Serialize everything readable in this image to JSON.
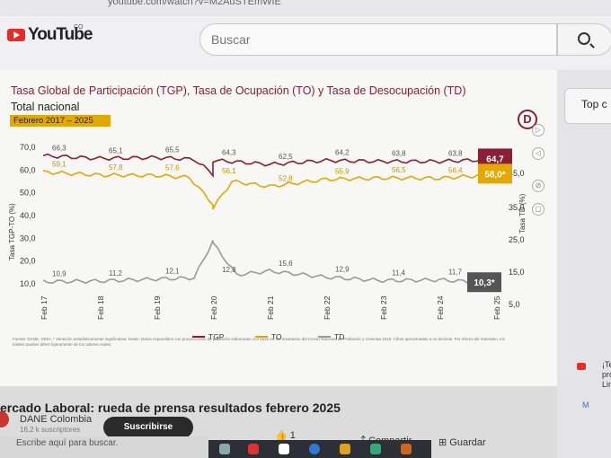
{
  "browser": {
    "url_fragment": "youtube.com/watch?v=M2AuSTEmWIE"
  },
  "header": {
    "logo": "YouTube",
    "country": "CO",
    "search_placeholder": "Buscar"
  },
  "video": {
    "title_line1": "Tasa Global de Participación (TGP), Tasa de Ocupación (TO) y Tasa de Desocupación (TD)",
    "title_line2": "Total nacional",
    "period": "Febrero 2017 – 2025",
    "brand": "D",
    "source": "Fuente: DANE, GEIH. * Variación estadísticamente significativa. Notas: Datos expandidos con proyecciones de población elaboradas con base en los resultados del Censo Nacional de Población y Vivienda 2018. Cifras aproximadas a un decimal. Por efecto del redondeo, los totales pueden diferir ligeramente de los valores reales."
  },
  "chart_data": {
    "type": "line",
    "x": [
      "Feb 17",
      "Feb 18",
      "Feb 19",
      "Feb 20",
      "Feb 21",
      "Feb 22",
      "Feb 23",
      "Feb 24",
      "Feb 25"
    ],
    "left_axis": {
      "label": "Tasa TGP-TO (%)",
      "ticks": [
        "70,0",
        "60,0",
        "50,0",
        "40,0",
        "30,0",
        "20,0",
        "10,0"
      ],
      "ylim": [
        10,
        70
      ]
    },
    "right_axis": {
      "label": "Tasa TD (%)",
      "ticks": [
        "45,0",
        "35,0",
        "25,0",
        "15,0",
        "5,0"
      ]
    },
    "series": [
      {
        "name": "TGP",
        "color": "#8a1f35",
        "axis": "left",
        "values": [
          66.3,
          65.1,
          65.5,
          64.3,
          62.5,
          64.2,
          63.8,
          63.8,
          64.7
        ],
        "labels": [
          "66,3",
          "65,1",
          "65,5",
          "64,3",
          "62,5",
          "64,2",
          "63,8",
          "63,8",
          "64,7"
        ]
      },
      {
        "name": "TO",
        "color": "#e3a900",
        "axis": "left",
        "values": [
          59.1,
          57.8,
          57.6,
          56.1,
          52.8,
          55.9,
          56.5,
          56.4,
          58.0
        ],
        "labels": [
          "59,1",
          "57,8",
          "57,6",
          "56,1",
          "52,8",
          "55,9",
          "56,5",
          "56,4",
          "58,0*"
        ]
      },
      {
        "name": "TD",
        "color": "#9a9a9a",
        "axis": "left",
        "values": [
          10.9,
          11.2,
          12.1,
          12.8,
          15.6,
          12.9,
          11.4,
          11.7,
          10.3
        ],
        "labels": [
          "10,9",
          "11,2",
          "12,1",
          "12,8",
          "15,6",
          "12,9",
          "11,4",
          "11,7",
          "10,3*"
        ]
      }
    ],
    "legend": "bottom"
  },
  "actions": {
    "likes": "1",
    "share": "Compartir",
    "save": "Guardar"
  },
  "below": {
    "video_title": "ercado Laboral: rueda de prensa resultados febrero 2025",
    "channel": "DANE Colombia",
    "subs": "16,2 k suscriptores",
    "subscribe": "Suscribirse"
  },
  "sidebar": {
    "chip": "Top c",
    "notif": "¡Te pro Lin",
    "more": "M"
  },
  "taskbar": {
    "search": "Escribe aquí para buscar."
  }
}
